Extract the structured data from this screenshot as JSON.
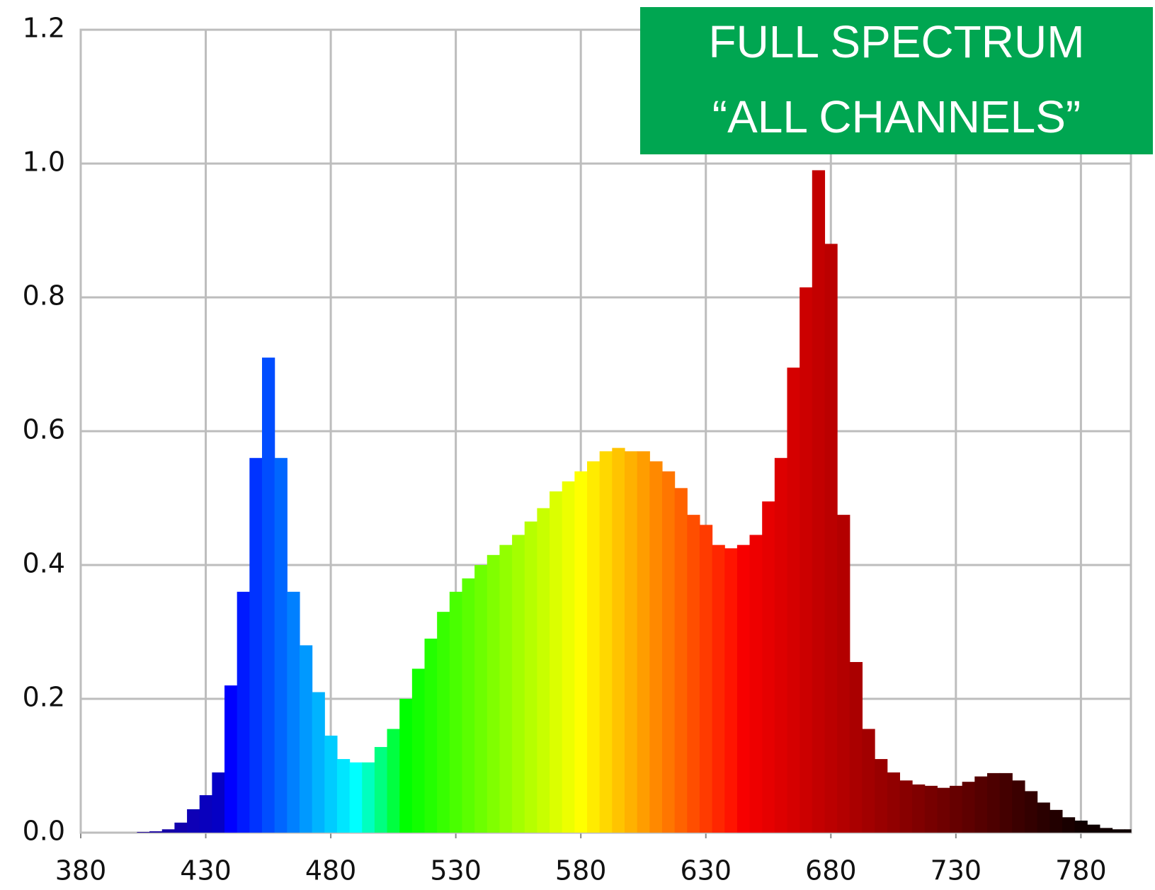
{
  "chart_data": {
    "type": "spectrum",
    "annotation": [
      "FULL SPECTRUM",
      "“ALL CHANNELS”"
    ],
    "annotation_color": "#00a651",
    "x": [
      380,
      385,
      390,
      395,
      400,
      405,
      410,
      415,
      420,
      425,
      430,
      435,
      440,
      445,
      450,
      455,
      460,
      465,
      470,
      475,
      480,
      485,
      490,
      495,
      500,
      505,
      510,
      515,
      520,
      525,
      530,
      535,
      540,
      545,
      550,
      555,
      560,
      565,
      570,
      575,
      580,
      585,
      590,
      595,
      600,
      605,
      610,
      615,
      620,
      625,
      630,
      635,
      640,
      645,
      650,
      655,
      660,
      665,
      670,
      675,
      680,
      685,
      690,
      695,
      700,
      705,
      710,
      715,
      720,
      725,
      730,
      735,
      740,
      745,
      750,
      755,
      760,
      765,
      770,
      775,
      780,
      785,
      790,
      795,
      800
    ],
    "values": [
      0,
      0,
      0,
      0,
      0,
      0.001,
      0.002,
      0.005,
      0.015,
      0.035,
      0.056,
      0.09,
      0.22,
      0.36,
      0.56,
      0.71,
      0.56,
      0.36,
      0.28,
      0.21,
      0.145,
      0.11,
      0.105,
      0.105,
      0.128,
      0.155,
      0.2,
      0.245,
      0.29,
      0.33,
      0.36,
      0.38,
      0.4,
      0.415,
      0.43,
      0.445,
      0.465,
      0.485,
      0.51,
      0.525,
      0.54,
      0.555,
      0.57,
      0.575,
      0.57,
      0.57,
      0.555,
      0.54,
      0.515,
      0.475,
      0.46,
      0.43,
      0.425,
      0.43,
      0.445,
      0.495,
      0.56,
      0.695,
      0.815,
      0.99,
      0.88,
      0.475,
      0.255,
      0.155,
      0.11,
      0.09,
      0.078,
      0.072,
      0.07,
      0.067,
      0.07,
      0.076,
      0.084,
      0.089,
      0.089,
      0.078,
      0.062,
      0.045,
      0.034,
      0.023,
      0.018,
      0.012,
      0.007,
      0.005,
      0.005
    ],
    "xlim": [
      380,
      800
    ],
    "xticks": [
      380,
      430,
      480,
      530,
      580,
      630,
      680,
      730,
      780
    ],
    "ylim": [
      0,
      1.2
    ],
    "yticks": [
      {
        "value": 0,
        "label": "0.0"
      },
      0.2,
      0.4,
      0.6,
      0.8,
      {
        "value": 1,
        "label": "1.0"
      },
      1.2
    ],
    "grid": true
  }
}
